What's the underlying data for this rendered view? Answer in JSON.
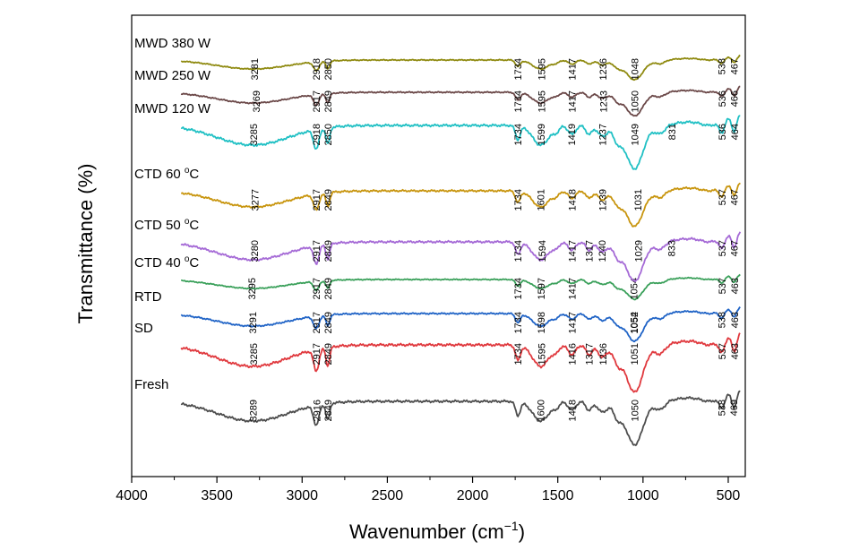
{
  "chart_data": {
    "type": "line",
    "xlabel": "Wavenumber (cm",
    "xlabel_sup": "−1",
    "xlabel_end": ")",
    "ylabel": "Transmittance (%)",
    "xlim": [
      4000,
      400
    ],
    "x_reversed": true,
    "xticks": [
      4000,
      3500,
      3000,
      2500,
      2000,
      1500,
      1000,
      500
    ],
    "grid": false,
    "series": [
      {
        "name": "Fresh",
        "sup": "",
        "name_end": "",
        "color": "#4d4d4d",
        "offset": 9,
        "peaks": [
          3289,
          2916,
          2849,
          1600,
          1418,
          1050,
          538,
          469
        ]
      },
      {
        "name": "SD",
        "sup": "",
        "name_end": "",
        "color": "#e0393e",
        "offset": 8,
        "peaks": [
          3285,
          2917,
          2849,
          1734,
          1595,
          1416,
          1317,
          1236,
          1051,
          537,
          463
        ]
      },
      {
        "name": "RTD",
        "sup": "",
        "name_end": "",
        "color": "#1f63c6",
        "offset": 7,
        "peaks": [
          3291,
          2917,
          2849,
          1734,
          1598,
          1417,
          1052,
          1054,
          538,
          463
        ]
      },
      {
        "name": "CTD 40 ",
        "sup": "o",
        "name_end": "C",
        "color": "#3aa05a",
        "offset": 6,
        "peaks": [
          3295,
          2917,
          2849,
          1734,
          1597,
          1417,
          1054,
          537,
          463
        ]
      },
      {
        "name": "CTD 50 ",
        "sup": "o",
        "name_end": "C",
        "color": "#a56ad6",
        "offset": 5,
        "peaks": [
          3280,
          2917,
          2849,
          1734,
          1594,
          1417,
          1317,
          1240,
          1029,
          833,
          537,
          467
        ]
      },
      {
        "name": "CTD 60 ",
        "sup": "o",
        "name_end": "C",
        "color": "#c8950e",
        "offset": 4,
        "peaks": [
          3277,
          2917,
          2849,
          1734,
          1601,
          1418,
          1239,
          1031,
          537,
          467
        ]
      },
      {
        "name": "MWD 120 W",
        "sup": "",
        "name_end": "",
        "color": "#20c0c4",
        "offset": 3,
        "peaks": [
          3285,
          2918,
          2850,
          1734,
          1599,
          1419,
          1237,
          1049,
          831,
          536,
          464
        ]
      },
      {
        "name": "MWD 250 W",
        "sup": "",
        "name_end": "",
        "color": "#6b4848",
        "offset": 2,
        "peaks": [
          3269,
          2917,
          2849,
          1734,
          1595,
          1417,
          1233,
          1050,
          536,
          466
        ]
      },
      {
        "name": "MWD 380 W",
        "sup": "",
        "name_end": "",
        "color": "#8f8a10",
        "offset": 1,
        "peaks": [
          3281,
          2918,
          2850,
          1734,
          1595,
          1417,
          1236,
          1048,
          538,
          467
        ]
      }
    ]
  }
}
